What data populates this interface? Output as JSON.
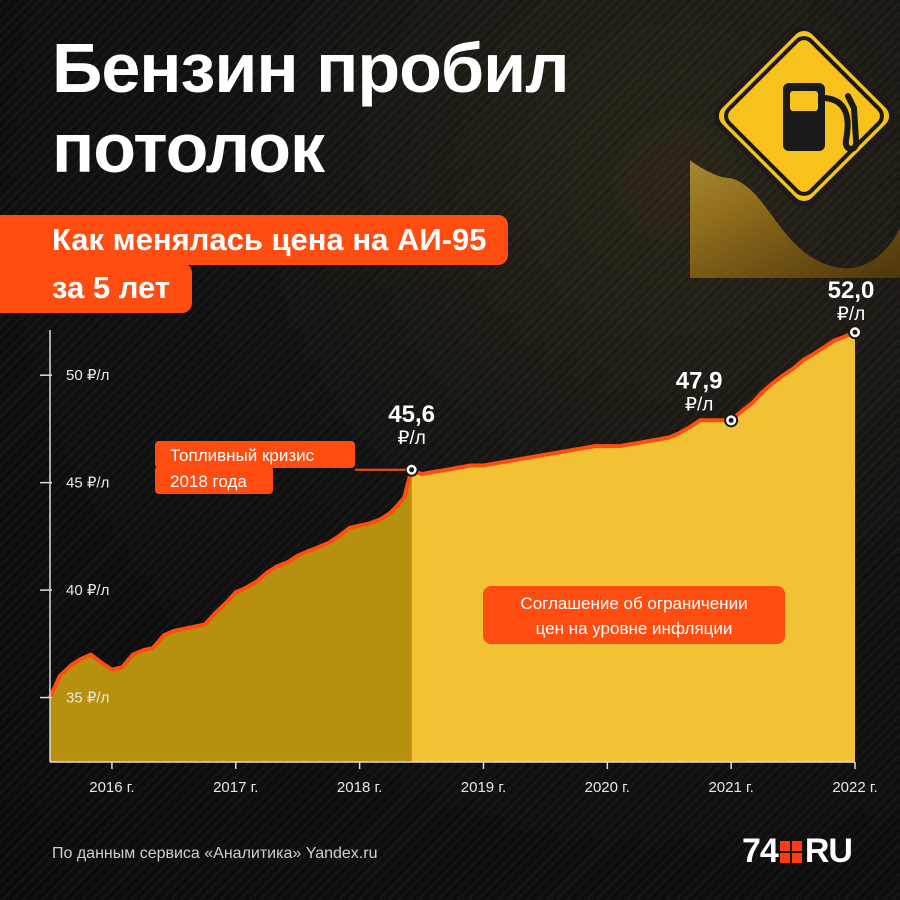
{
  "title": {
    "line1": "Бензин пробил",
    "line2": "потолок"
  },
  "subtitle": {
    "line1": "Как менялась цена на АИ-95",
    "line2": "за 5 лет"
  },
  "source": "По данным сервиса «Аналитика» Yandex.ru",
  "logo": {
    "left": "74",
    "right": "RU"
  },
  "colors": {
    "accent": "#ff4d12",
    "area_before_2018": "#b8900f",
    "area_after_2018": "#f2c234",
    "line": "#ff4d12"
  },
  "icons": [
    "fuel-pump-sign-icon",
    "gold-oil-splash"
  ],
  "chart_data": {
    "type": "area",
    "xlabel": "",
    "ylabel": "",
    "xlim": [
      2015.5,
      2022.0
    ],
    "ylim": [
      32,
      53.5
    ],
    "y_ticks": [
      {
        "value": 35,
        "label": "35 ₽/л"
      },
      {
        "value": 40,
        "label": "40 ₽/л"
      },
      {
        "value": 45,
        "label": "45 ₽/л"
      },
      {
        "value": 50,
        "label": "50 ₽/л"
      }
    ],
    "x_ticks": [
      {
        "value": 2016,
        "label": "2016 г."
      },
      {
        "value": 2017,
        "label": "2017 г."
      },
      {
        "value": 2018,
        "label": "2018 г."
      },
      {
        "value": 2019,
        "label": "2019 г."
      },
      {
        "value": 2020,
        "label": "2020 г."
      },
      {
        "value": 2021,
        "label": "2021 г."
      },
      {
        "value": 2022,
        "label": "2022 г."
      }
    ],
    "split_at": 2018.42,
    "series": [
      {
        "x": [
          2015.5,
          2015.58,
          2015.67,
          2015.75,
          2015.83,
          2015.92,
          2016.0,
          2016.08,
          2016.17,
          2016.25,
          2016.33,
          2016.42,
          2016.5,
          2016.58,
          2016.67,
          2016.75,
          2016.83,
          2016.92,
          2017.0,
          2017.08,
          2017.17,
          2017.25,
          2017.33,
          2017.42,
          2017.5,
          2017.58,
          2017.67,
          2017.75,
          2017.83,
          2017.92,
          2018.0,
          2018.08,
          2018.17,
          2018.25,
          2018.3,
          2018.36,
          2018.42,
          2018.5,
          2018.6,
          2018.7,
          2018.8,
          2018.9,
          2019.0,
          2019.1,
          2019.2,
          2019.3,
          2019.4,
          2019.5,
          2019.6,
          2019.7,
          2019.8,
          2019.9,
          2020.0,
          2020.1,
          2020.2,
          2020.3,
          2020.4,
          2020.5,
          2020.58,
          2020.67,
          2020.75,
          2020.83,
          2020.92,
          2021.0,
          2021.08,
          2021.17,
          2021.25,
          2021.33,
          2021.42,
          2021.5,
          2021.58,
          2021.67,
          2021.75,
          2021.83,
          2021.92,
          2022.0
        ],
        "y": [
          35.0,
          36.0,
          36.5,
          36.8,
          37.0,
          36.6,
          36.3,
          36.4,
          37.0,
          37.2,
          37.3,
          37.9,
          38.1,
          38.2,
          38.3,
          38.4,
          38.9,
          39.4,
          39.9,
          40.1,
          40.4,
          40.8,
          41.1,
          41.3,
          41.6,
          41.8,
          42.0,
          42.2,
          42.5,
          42.9,
          43.0,
          43.1,
          43.3,
          43.6,
          43.9,
          44.3,
          45.6,
          45.4,
          45.5,
          45.6,
          45.7,
          45.8,
          45.8,
          45.9,
          46.0,
          46.1,
          46.2,
          46.3,
          46.4,
          46.5,
          46.6,
          46.7,
          46.7,
          46.7,
          46.8,
          46.9,
          47.0,
          47.1,
          47.3,
          47.6,
          47.9,
          47.9,
          47.9,
          47.9,
          48.3,
          48.7,
          49.2,
          49.6,
          50.0,
          50.3,
          50.7,
          51.0,
          51.3,
          51.6,
          51.8,
          52.0
        ]
      }
    ],
    "highlights": [
      {
        "x": 2018.42,
        "y": 45.6,
        "value": "45,6",
        "unit": "₽/л"
      },
      {
        "x": 2021.0,
        "y": 47.9,
        "value": "47,9",
        "unit": "₽/л"
      },
      {
        "x": 2022.0,
        "y": 52.0,
        "value": "52,0",
        "unit": "₽/л"
      }
    ],
    "annotations": [
      {
        "lines": [
          "Топливный кризис",
          "2018 года"
        ]
      },
      {
        "lines": [
          "Соглашение об ограничении",
          "цен на уровне инфляции"
        ]
      }
    ],
    "grid": false,
    "legend": "none"
  }
}
